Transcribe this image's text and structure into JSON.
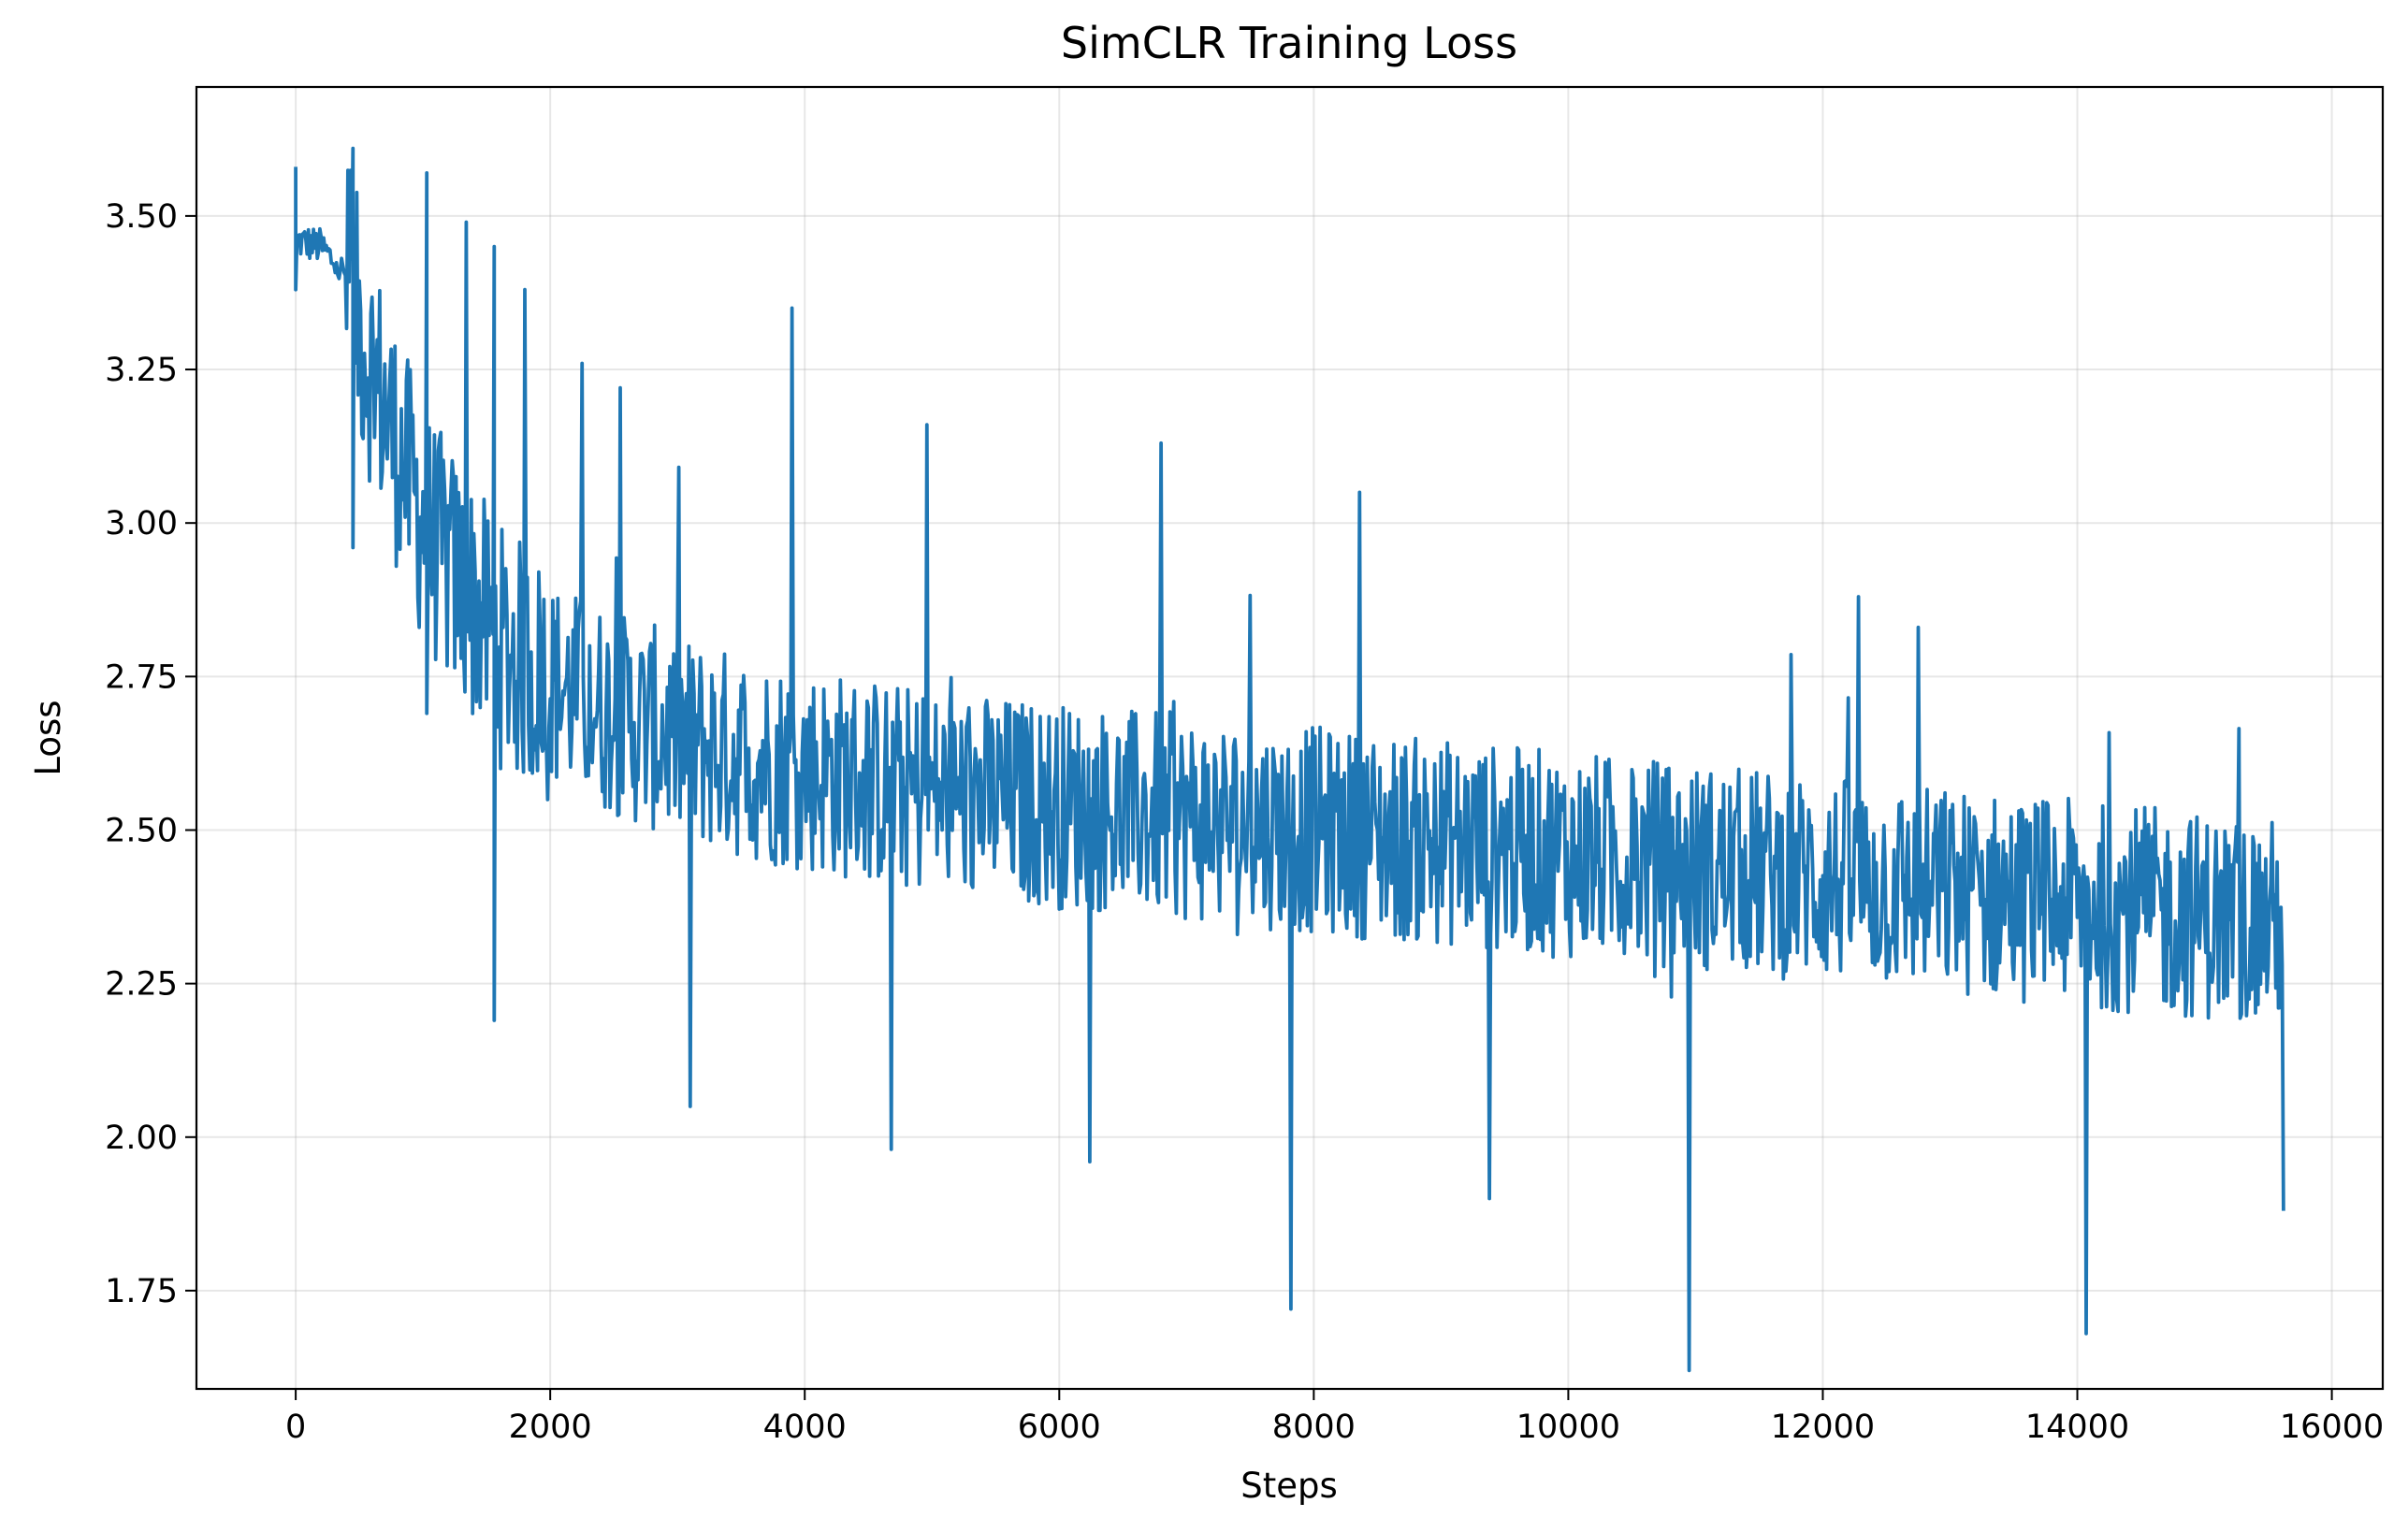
{
  "chart_data": {
    "type": "line",
    "title": "SimCLR Training Loss",
    "xlabel": "Steps",
    "ylabel": "Loss",
    "xlim": [
      -780,
      16400
    ],
    "ylim": [
      1.59,
      3.71
    ],
    "grid": true,
    "x_ticks": [
      0,
      2000,
      4000,
      6000,
      8000,
      10000,
      12000,
      14000,
      16000
    ],
    "x_tick_labels": [
      "0",
      "2000",
      "4000",
      "6000",
      "8000",
      "10000",
      "12000",
      "14000",
      "16000"
    ],
    "y_ticks": [
      1.75,
      2.0,
      2.25,
      2.5,
      2.75,
      3.0,
      3.25,
      3.5
    ],
    "y_tick_labels": [
      "1.75",
      "2.00",
      "2.25",
      "2.50",
      "2.75",
      "3.00",
      "3.25",
      "3.50"
    ],
    "line_color": "#1f77b4",
    "series": [
      {
        "x": [
          0,
          200,
          400,
          600,
          800,
          1000,
          1200,
          1400,
          1600,
          1800,
          2000,
          2500,
          3000,
          3500,
          4000,
          4500,
          5000,
          5500,
          6000,
          6500,
          7000,
          7500,
          8000,
          8500,
          9000,
          9500,
          10000,
          10500,
          11000,
          11500,
          12000,
          12500,
          13000,
          13500,
          14000,
          14500,
          15000,
          15500,
          15620
        ],
        "values": [
          3.46,
          3.45,
          3.4,
          3.25,
          3.12,
          3.0,
          2.93,
          2.87,
          2.8,
          2.77,
          2.74,
          2.69,
          2.65,
          2.62,
          2.6,
          2.58,
          2.56,
          2.55,
          2.54,
          2.53,
          2.52,
          2.51,
          2.5,
          2.49,
          2.48,
          2.47,
          2.46,
          2.45,
          2.44,
          2.43,
          2.42,
          2.41,
          2.4,
          2.39,
          2.38,
          2.37,
          2.36,
          2.35,
          2.35
        ]
      }
    ],
    "spikes": [
      {
        "x": 0,
        "values": [
          3.58,
          3.38
        ]
      },
      {
        "x": 450,
        "values": [
          3.61,
          2.96
        ]
      },
      {
        "x": 1030,
        "values": [
          3.57,
          2.69
        ]
      },
      {
        "x": 1340,
        "values": [
          3.49
        ]
      },
      {
        "x": 1560,
        "values": [
          3.45,
          2.19
        ]
      },
      {
        "x": 1800,
        "values": [
          3.38
        ]
      },
      {
        "x": 2250,
        "values": [
          3.26
        ]
      },
      {
        "x": 2550,
        "values": [
          3.22
        ]
      },
      {
        "x": 3100,
        "values": [
          2.05
        ]
      },
      {
        "x": 3900,
        "values": [
          3.35
        ]
      },
      {
        "x": 4680,
        "values": [
          1.98
        ]
      },
      {
        "x": 4960,
        "values": [
          3.16
        ]
      },
      {
        "x": 6240,
        "values": [
          1.96
        ]
      },
      {
        "x": 6800,
        "values": [
          3.13
        ]
      },
      {
        "x": 7820,
        "values": [
          1.72
        ]
      },
      {
        "x": 8360,
        "values": [
          3.05
        ]
      },
      {
        "x": 9380,
        "values": [
          1.9
        ]
      },
      {
        "x": 10950,
        "values": [
          1.62
        ]
      },
      {
        "x": 12280,
        "values": [
          2.88
        ]
      },
      {
        "x": 12750,
        "values": [
          2.83
        ]
      },
      {
        "x": 14070,
        "values": [
          1.68
        ]
      },
      {
        "x": 15620,
        "values": [
          1.88
        ]
      }
    ]
  }
}
